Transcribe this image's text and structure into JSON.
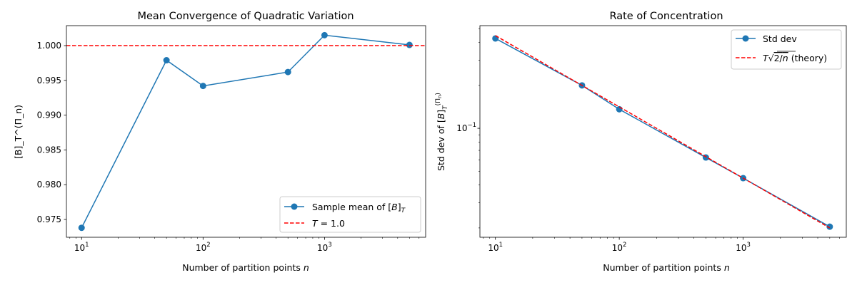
{
  "chart_data": [
    {
      "type": "line",
      "title": "Mean Convergence of Quadratic Variation",
      "xlabel": "Number of partition points n",
      "ylabel": "[B]_T^(Π_n)",
      "xscale": "log",
      "yscale": "linear",
      "xlim": [
        7.5,
        6800
      ],
      "ylim": [
        0.97244,
        1.00287
      ],
      "xticks": [
        {
          "v": 10,
          "b": "10",
          "e": "1"
        },
        {
          "v": 100,
          "b": "10",
          "e": "2"
        },
        {
          "v": 1000,
          "b": "10",
          "e": "3"
        }
      ],
      "yticks": [
        "0.975",
        "0.980",
        "0.985",
        "0.990",
        "0.995",
        "1.000"
      ],
      "x": [
        10,
        50,
        100,
        500,
        1000,
        5000
      ],
      "series": [
        {
          "name": "Sample mean of [B]_T",
          "values": [
            0.9738,
            0.9979,
            0.9942,
            0.9962,
            1.0015,
            1.0001
          ],
          "color": "#1f77b4",
          "style": "solid-marker"
        },
        {
          "name": "T = 1.0",
          "hline": 1.0,
          "color": "#ff0000",
          "style": "dashed"
        }
      ],
      "legend": "lower-right",
      "grid": false
    },
    {
      "type": "line",
      "title": "Rate of Concentration",
      "xlabel": "Number of partition points n",
      "ylabel": "Std dev of [B]_T^(Π_n)",
      "xscale": "log",
      "yscale": "log",
      "xlim": [
        7.5,
        6800
      ],
      "ylim": [
        0.0172,
        0.525
      ],
      "xticks": [
        {
          "v": 10,
          "b": "10",
          "e": "1"
        },
        {
          "v": 100,
          "b": "10",
          "e": "2"
        },
        {
          "v": 1000,
          "b": "10",
          "e": "3"
        }
      ],
      "yticks": [
        {
          "v": 0.1,
          "b": "10",
          "e": "−1"
        }
      ],
      "x": [
        10,
        50,
        100,
        500,
        1000,
        5000
      ],
      "series": [
        {
          "name": "Std dev",
          "values": [
            0.427,
            0.2,
            0.136,
            0.0624,
            0.0447,
            0.0204
          ],
          "color": "#1f77b4",
          "style": "solid-marker"
        },
        {
          "name": "T√(2/n) (theory)",
          "values": [
            0.4472,
            0.2,
            0.1414,
            0.0632,
            0.0447,
            0.02
          ],
          "color": "#ff0000",
          "style": "dashed"
        }
      ],
      "legend": "upper-right",
      "grid": false
    }
  ]
}
